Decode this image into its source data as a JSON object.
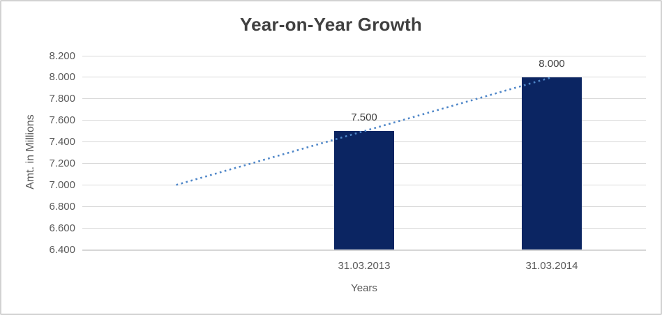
{
  "chart_data": {
    "type": "bar",
    "title": "Year-on-Year Growth",
    "xlabel": "Years",
    "ylabel": "Amt. in Millions",
    "categories": [
      "31.03.2013",
      "31.03.2014"
    ],
    "values": [
      7.5,
      8.0
    ],
    "data_labels": [
      "7.500",
      "8.000"
    ],
    "y_tick_labels": [
      "8.200",
      "8.000",
      "7.800",
      "7.600",
      "7.400",
      "7.200",
      "7.000",
      "6.800",
      "6.600",
      "6.400"
    ],
    "ylim": [
      6.4,
      8.2
    ],
    "grid": true,
    "legend": "none",
    "trendline": {
      "shape": "linear",
      "style": "dotted",
      "start_value": 7.0,
      "end_value": 8.0,
      "extends_one_category_left_of_first_bar": true
    },
    "colors": {
      "bar": "#0B2562",
      "trendline": "#4E86C8",
      "title_text": "#404040",
      "axis_text": "#595959",
      "data_label_text": "#404040",
      "gridline": "#D9D9D9",
      "chart_border": "#D2D2D2"
    }
  }
}
